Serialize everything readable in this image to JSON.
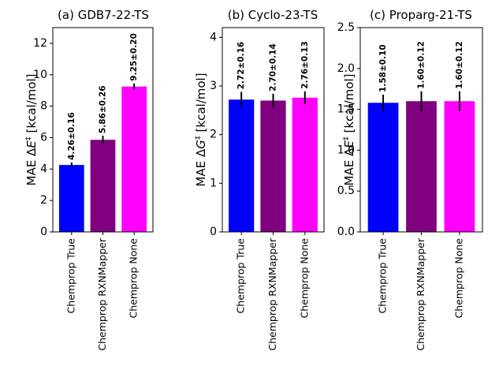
{
  "chart_data": [
    {
      "type": "bar",
      "title": "(a) GDB7-22-TS",
      "ylabel_parts": [
        "MAE Δ",
        "E",
        "‡",
        " [kcal/mol]"
      ],
      "categories": [
        "Chemprop True",
        "Chemprop RXNMapper",
        "Chemprop None"
      ],
      "values": [
        4.26,
        5.86,
        9.25
      ],
      "errors": [
        0.16,
        0.26,
        0.2
      ],
      "data_labels": [
        "4.26±0.16",
        "5.86±0.26",
        "9.25±0.20"
      ],
      "colors": [
        "#0000ff",
        "#800080",
        "#ff00ff"
      ],
      "ylim": [
        0,
        13
      ],
      "yticks": [
        0,
        2,
        4,
        6,
        8,
        10,
        12
      ],
      "ytick_labels": [
        "0",
        "2",
        "4",
        "6",
        "8",
        "10",
        "12"
      ]
    },
    {
      "type": "bar",
      "title": "(b) Cyclo-23-TS",
      "ylabel_parts": [
        "MAE Δ",
        "G",
        "‡",
        " [kcal/mol]"
      ],
      "categories": [
        "Chemprop True",
        "Chemprop RXNMapper",
        "Chemprop None"
      ],
      "values": [
        2.72,
        2.7,
        2.76
      ],
      "errors": [
        0.16,
        0.14,
        0.13
      ],
      "data_labels": [
        "2.72±0.16",
        "2.70±0.14",
        "2.76±0.13"
      ],
      "colors": [
        "#0000ff",
        "#800080",
        "#ff00ff"
      ],
      "ylim": [
        0,
        4.2
      ],
      "yticks": [
        0,
        1,
        2,
        3,
        4
      ],
      "ytick_labels": [
        "0",
        "1",
        "2",
        "3",
        "4"
      ]
    },
    {
      "type": "bar",
      "title": "(c) Proparg-21-TS",
      "ylabel_parts": [
        "MAE Δ",
        "E",
        "‡",
        " [kcal/mol]"
      ],
      "categories": [
        "Chemprop True",
        "Chemprop RXNMapper",
        "Chemprop None"
      ],
      "values": [
        1.58,
        1.6,
        1.6
      ],
      "errors": [
        0.1,
        0.12,
        0.12
      ],
      "data_labels": [
        "1.58±0.10",
        "1.60±0.12",
        "1.60±0.12"
      ],
      "colors": [
        "#0000ff",
        "#800080",
        "#ff00ff"
      ],
      "ylim": [
        0,
        2.5
      ],
      "yticks": [
        0,
        0.5,
        1.0,
        1.5,
        2.0,
        2.5
      ],
      "ytick_labels": [
        "0.0",
        "0.5",
        "1.0",
        "1.5",
        "2.0",
        "2.5"
      ]
    }
  ]
}
